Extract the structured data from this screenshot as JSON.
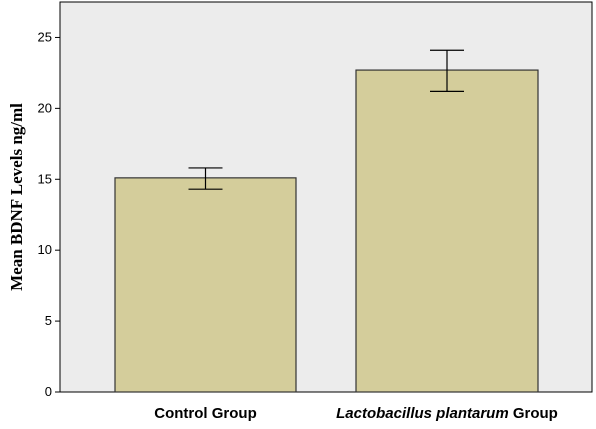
{
  "chart_data": {
    "type": "bar",
    "categories": [
      "Control Group",
      "Lactobacillus plantarum Group"
    ],
    "category_parts": [
      [
        {
          "text": "Control Group",
          "italic": false
        }
      ],
      [
        {
          "text": "Lactobacillus plantarum",
          "italic": true
        },
        {
          "text": " Group",
          "italic": false
        }
      ]
    ],
    "values": [
      15.1,
      22.7
    ],
    "error_bars": [
      {
        "low": 14.3,
        "high": 15.8
      },
      {
        "low": 21.2,
        "high": 24.1
      }
    ],
    "ylabel": "Mean BDNF Levels ng/ml",
    "xlabel": "",
    "ylim": [
      0,
      27.5
    ],
    "yticks": [
      0,
      5,
      10,
      15,
      20,
      25
    ],
    "grid": false,
    "colors": {
      "plot_background": "#ececec",
      "bar_fill": "#d4cd9b",
      "bar_stroke": "#333333",
      "axis": "#000000"
    }
  }
}
